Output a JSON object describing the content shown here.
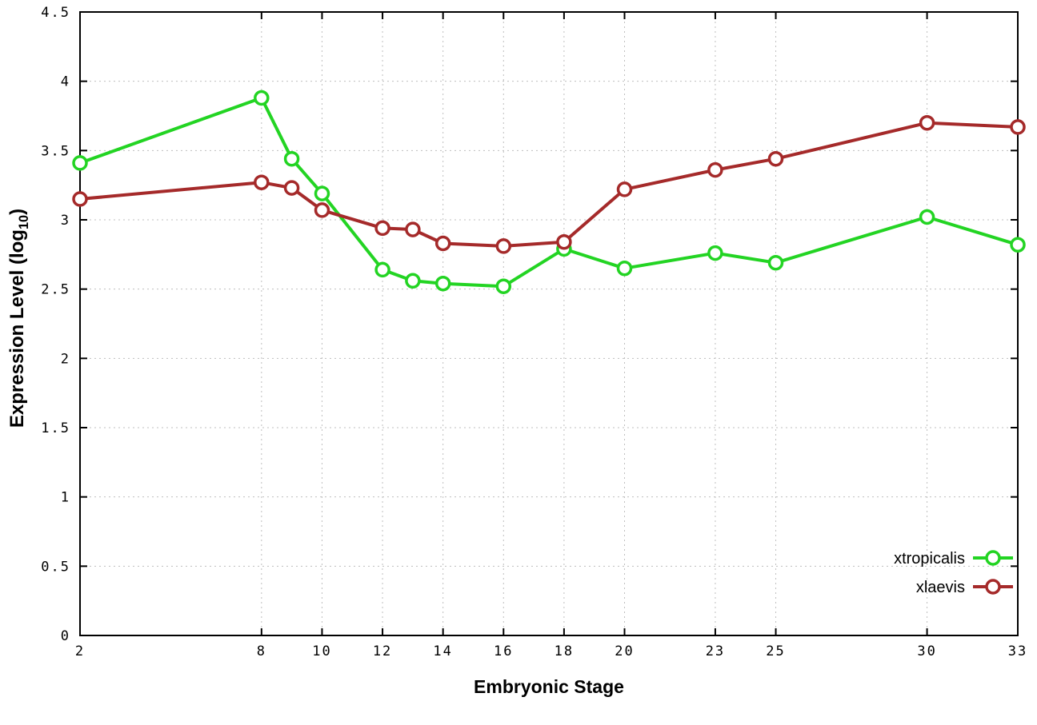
{
  "page": {
    "background": "#ffffff"
  },
  "chart_data": {
    "type": "line",
    "title": "",
    "xlabel": "Embryonic Stage",
    "ylabel": {
      "main": "Expression Level (log",
      "sub": "10",
      "end": ")"
    },
    "xlim": [
      2,
      33
    ],
    "ylim": [
      0,
      4.5
    ],
    "xticks": [
      2,
      8,
      10,
      12,
      14,
      16,
      18,
      20,
      23,
      25,
      30,
      33
    ],
    "yticks": [
      0,
      0.5,
      1,
      1.5,
      2,
      2.5,
      3,
      3.5,
      4,
      4.5
    ],
    "grid": true,
    "grid_color": "#bfbfbf",
    "axis_color": "#000000",
    "marker": "open-circle",
    "x": [
      2,
      8,
      9,
      10,
      12,
      13,
      14,
      16,
      18,
      20,
      23,
      25,
      30,
      33
    ],
    "series": [
      {
        "name": "xtropicalis",
        "color": "#23d423",
        "values": [
          3.41,
          3.88,
          3.44,
          3.19,
          2.64,
          2.56,
          2.54,
          2.52,
          2.79,
          2.65,
          2.76,
          2.69,
          3.02,
          2.82
        ]
      },
      {
        "name": "xlaevis",
        "color": "#a52a2a",
        "values": [
          3.15,
          3.27,
          3.23,
          3.07,
          2.94,
          2.93,
          2.83,
          2.81,
          2.84,
          3.22,
          3.36,
          3.44,
          3.7,
          3.67
        ]
      }
    ],
    "legend": {
      "position": "bottom-right",
      "entries": [
        "xtropicalis",
        "xlaevis"
      ]
    }
  }
}
